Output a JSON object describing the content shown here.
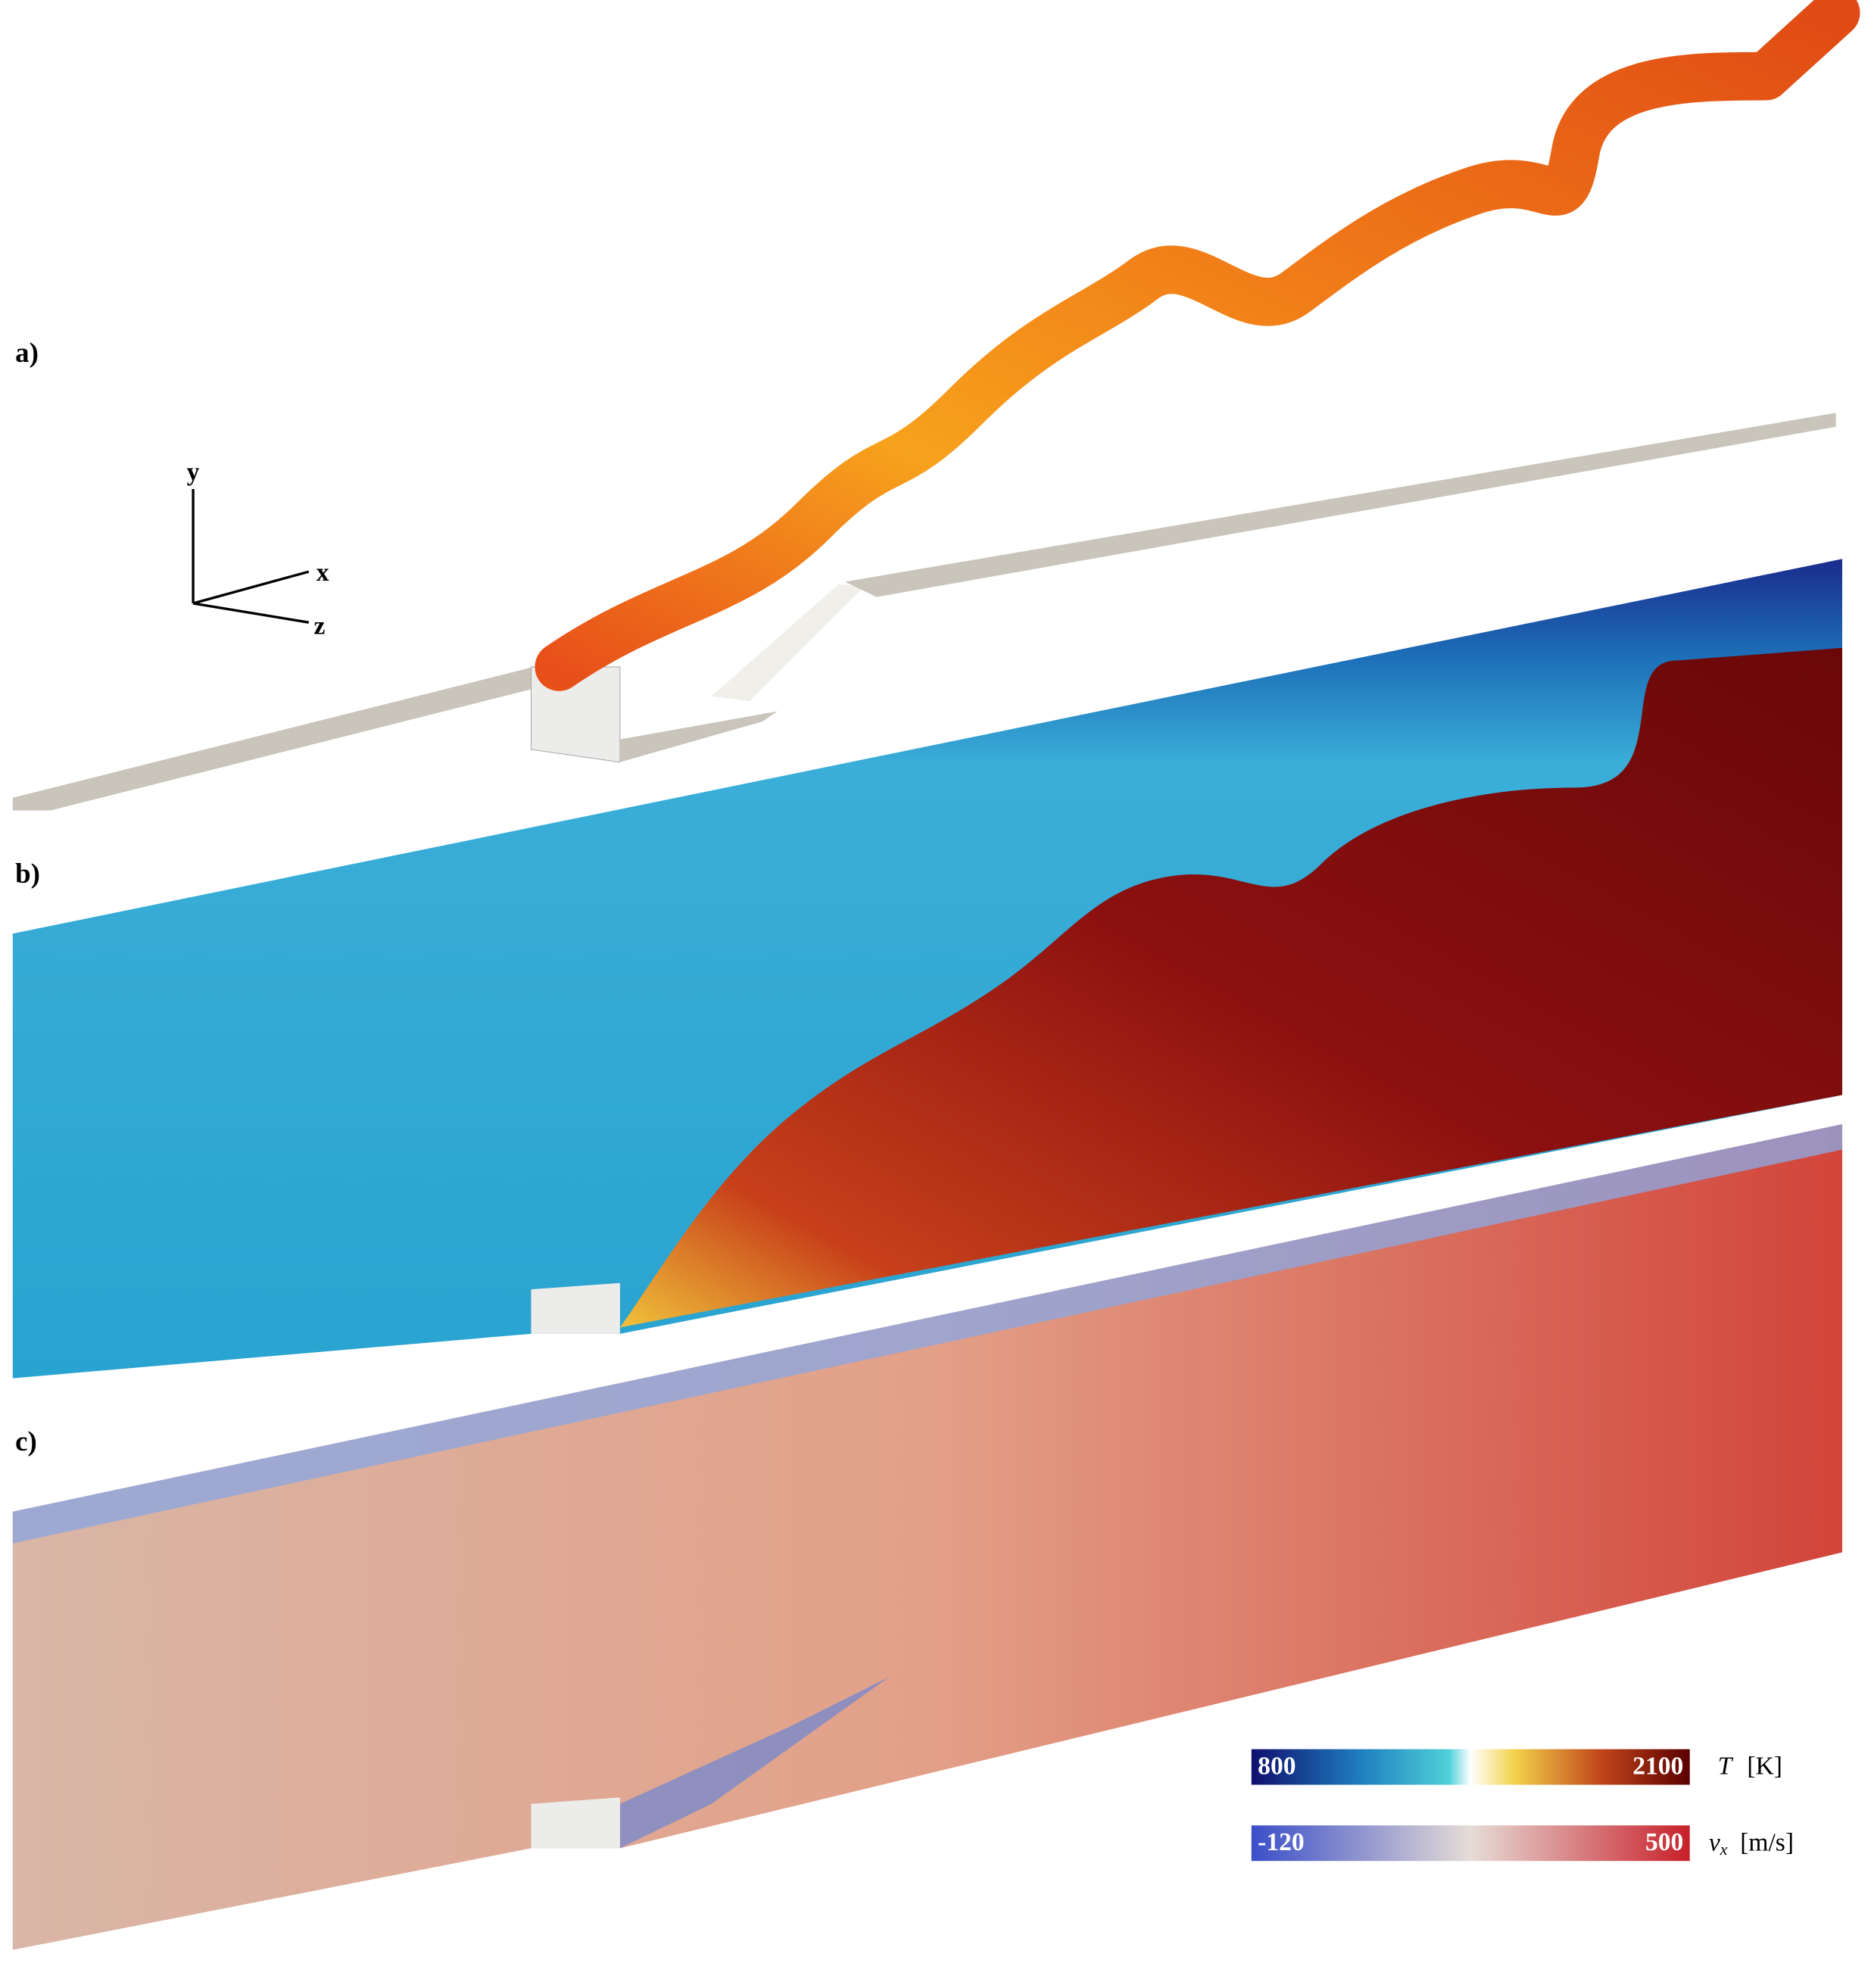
{
  "panels": [
    {
      "label": "a)"
    },
    {
      "label": "b)"
    },
    {
      "label": "c)"
    }
  ],
  "axes": {
    "y": "y",
    "x": "x",
    "z": "z"
  },
  "colorbars": [
    {
      "min_label": "800",
      "max_label": "2100",
      "symbol": "T",
      "unit": "[K]"
    },
    {
      "min_label": "-120",
      "max_label": "500",
      "symbol": "v",
      "subscript": "x",
      "unit": "[m/s]"
    }
  ]
}
